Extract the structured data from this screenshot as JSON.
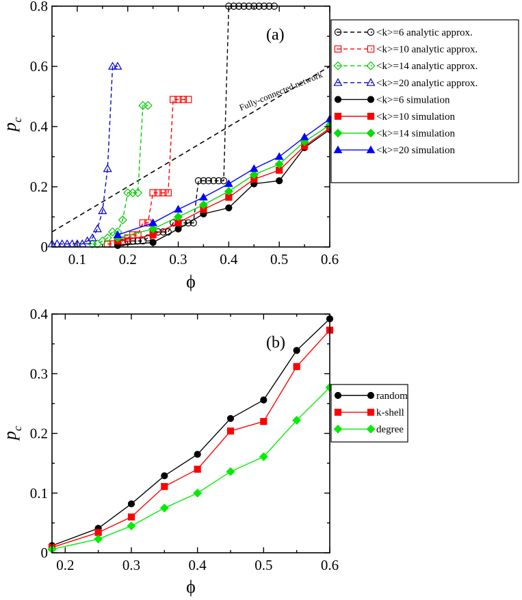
{
  "chart_data": [
    {
      "type": "line",
      "panel_label": "(a)",
      "xlabel": "ϕ",
      "ylabel": "p",
      "ylabel_sub": "c",
      "xlim": [
        0.05,
        0.6
      ],
      "ylim": [
        0,
        0.8
      ],
      "xticks": [
        0.1,
        0.2,
        0.3,
        0.4,
        0.5,
        0.6
      ],
      "yticks": [
        0,
        0.2,
        0.4,
        0.6,
        0.8
      ],
      "xtick_labels": [
        "0.1",
        "0.2",
        "0.3",
        "0.4",
        "0.5",
        "0.6"
      ],
      "ytick_labels": [
        "0",
        "0.2",
        "0.4",
        "0.6",
        "0.8"
      ],
      "annotation": "Fully-connected network",
      "reference_line": {
        "x": [
          0.05,
          0.6
        ],
        "y": [
          0.05,
          0.6
        ],
        "color": "#000000"
      },
      "series": [
        {
          "name": "<k>=6 analytic approx.",
          "style": "dashed",
          "marker": "circle-open",
          "color": "#000000",
          "x": [
            0.18,
            0.19,
            0.2,
            0.21,
            0.22,
            0.23,
            0.24,
            0.25,
            0.26,
            0.27,
            0.28,
            0.29,
            0.3,
            0.31,
            0.32,
            0.33,
            0.34,
            0.35,
            0.36,
            0.37,
            0.38,
            0.39,
            0.4,
            0.41,
            0.42,
            0.43,
            0.44,
            0.45,
            0.46,
            0.47,
            0.48,
            0.49
          ],
          "y": [
            0.01,
            0.015,
            0.02,
            0.02,
            0.02,
            0.02,
            0.03,
            0.05,
            0.05,
            0.05,
            0.05,
            0.08,
            0.08,
            0.08,
            0.08,
            0.08,
            0.22,
            0.22,
            0.22,
            0.22,
            0.22,
            0.22,
            0.8,
            0.8,
            0.8,
            0.8,
            0.8,
            0.8,
            0.8,
            0.8,
            0.8,
            0.8
          ]
        },
        {
          "name": "<k>=10 analytic approx.",
          "style": "dashed",
          "marker": "square-open",
          "color": "#ff0000",
          "x": [
            0.16,
            0.17,
            0.18,
            0.19,
            0.2,
            0.21,
            0.22,
            0.23,
            0.24,
            0.25,
            0.26,
            0.27,
            0.28,
            0.29,
            0.3,
            0.31,
            0.32
          ],
          "y": [
            0.01,
            0.01,
            0.02,
            0.02,
            0.03,
            0.04,
            0.04,
            0.08,
            0.08,
            0.18,
            0.18,
            0.18,
            0.18,
            0.49,
            0.49,
            0.49,
            0.49
          ]
        },
        {
          "name": "<k>=14 analytic approx.",
          "style": "dashed",
          "marker": "diamond-open",
          "color": "#00cc00",
          "x": [
            0.13,
            0.14,
            0.15,
            0.16,
            0.17,
            0.18,
            0.19,
            0.2,
            0.21,
            0.22,
            0.23,
            0.24
          ],
          "y": [
            0.01,
            0.01,
            0.02,
            0.03,
            0.05,
            0.05,
            0.09,
            0.18,
            0.18,
            0.18,
            0.47,
            0.47
          ]
        },
        {
          "name": "<k>=20 analytic approx.",
          "style": "dashed",
          "marker": "triangle-open",
          "color": "#0000cc",
          "x": [
            0.05,
            0.06,
            0.07,
            0.08,
            0.09,
            0.1,
            0.11,
            0.12,
            0.13,
            0.14,
            0.15,
            0.16,
            0.17,
            0.18
          ],
          "y": [
            0.01,
            0.01,
            0.01,
            0.01,
            0.01,
            0.01,
            0.01,
            0.02,
            0.03,
            0.06,
            0.12,
            0.26,
            0.6,
            0.6
          ]
        },
        {
          "name": "<k>=6 simulation",
          "style": "solid",
          "marker": "circle",
          "color": "#000000",
          "x": [
            0.18,
            0.25,
            0.3,
            0.35,
            0.4,
            0.45,
            0.5,
            0.55,
            0.6
          ],
          "y": [
            0.005,
            0.015,
            0.06,
            0.11,
            0.13,
            0.21,
            0.22,
            0.33,
            0.39
          ]
        },
        {
          "name": "<k>=10 simulation",
          "style": "solid",
          "marker": "square",
          "color": "#ff0000",
          "x": [
            0.18,
            0.25,
            0.3,
            0.35,
            0.4,
            0.45,
            0.5,
            0.55,
            0.6
          ],
          "y": [
            0.02,
            0.04,
            0.08,
            0.125,
            0.165,
            0.225,
            0.255,
            0.335,
            0.395
          ]
        },
        {
          "name": "<k>=14 simulation",
          "style": "solid",
          "marker": "diamond",
          "color": "#00dd00",
          "x": [
            0.18,
            0.25,
            0.3,
            0.35,
            0.4,
            0.45,
            0.5,
            0.55,
            0.6
          ],
          "y": [
            0.03,
            0.06,
            0.1,
            0.14,
            0.185,
            0.24,
            0.275,
            0.35,
            0.405
          ]
        },
        {
          "name": "<k>=20 simulation",
          "style": "solid",
          "marker": "triangle",
          "color": "#0000ff",
          "x": [
            0.18,
            0.25,
            0.3,
            0.35,
            0.4,
            0.45,
            0.5,
            0.55,
            0.6
          ],
          "y": [
            0.04,
            0.08,
            0.125,
            0.165,
            0.21,
            0.26,
            0.3,
            0.365,
            0.425
          ]
        }
      ]
    },
    {
      "type": "line",
      "panel_label": "(b)",
      "xlabel": "ϕ",
      "ylabel": "p",
      "ylabel_sub": "c",
      "xlim": [
        0.18,
        0.6
      ],
      "ylim": [
        0,
        0.4
      ],
      "xticks": [
        0.2,
        0.3,
        0.4,
        0.5,
        0.6
      ],
      "yticks": [
        0,
        0.1,
        0.2,
        0.3,
        0.4
      ],
      "xtick_labels": [
        "0.2",
        "0.3",
        "0.4",
        "0.5",
        "0.6"
      ],
      "ytick_labels": [
        "0",
        "0.1",
        "0.2",
        "0.3",
        "0.4"
      ],
      "series": [
        {
          "name": "random",
          "style": "solid",
          "marker": "circle",
          "color": "#000000",
          "x": [
            0.18,
            0.25,
            0.3,
            0.35,
            0.4,
            0.45,
            0.5,
            0.55,
            0.6
          ],
          "y": [
            0.012,
            0.041,
            0.082,
            0.129,
            0.165,
            0.225,
            0.256,
            0.339,
            0.392
          ]
        },
        {
          "name": "k-shell",
          "style": "solid",
          "marker": "square",
          "color": "#ff0000",
          "x": [
            0.18,
            0.25,
            0.3,
            0.35,
            0.4,
            0.45,
            0.5,
            0.55,
            0.6
          ],
          "y": [
            0.009,
            0.034,
            0.06,
            0.111,
            0.14,
            0.204,
            0.22,
            0.312,
            0.373
          ]
        },
        {
          "name": "degree",
          "style": "solid",
          "marker": "diamond",
          "color": "#00ee00",
          "x": [
            0.18,
            0.25,
            0.3,
            0.35,
            0.4,
            0.45,
            0.5,
            0.55,
            0.6
          ],
          "y": [
            0.006,
            0.023,
            0.045,
            0.075,
            0.1,
            0.136,
            0.161,
            0.222,
            0.277
          ]
        }
      ]
    }
  ]
}
